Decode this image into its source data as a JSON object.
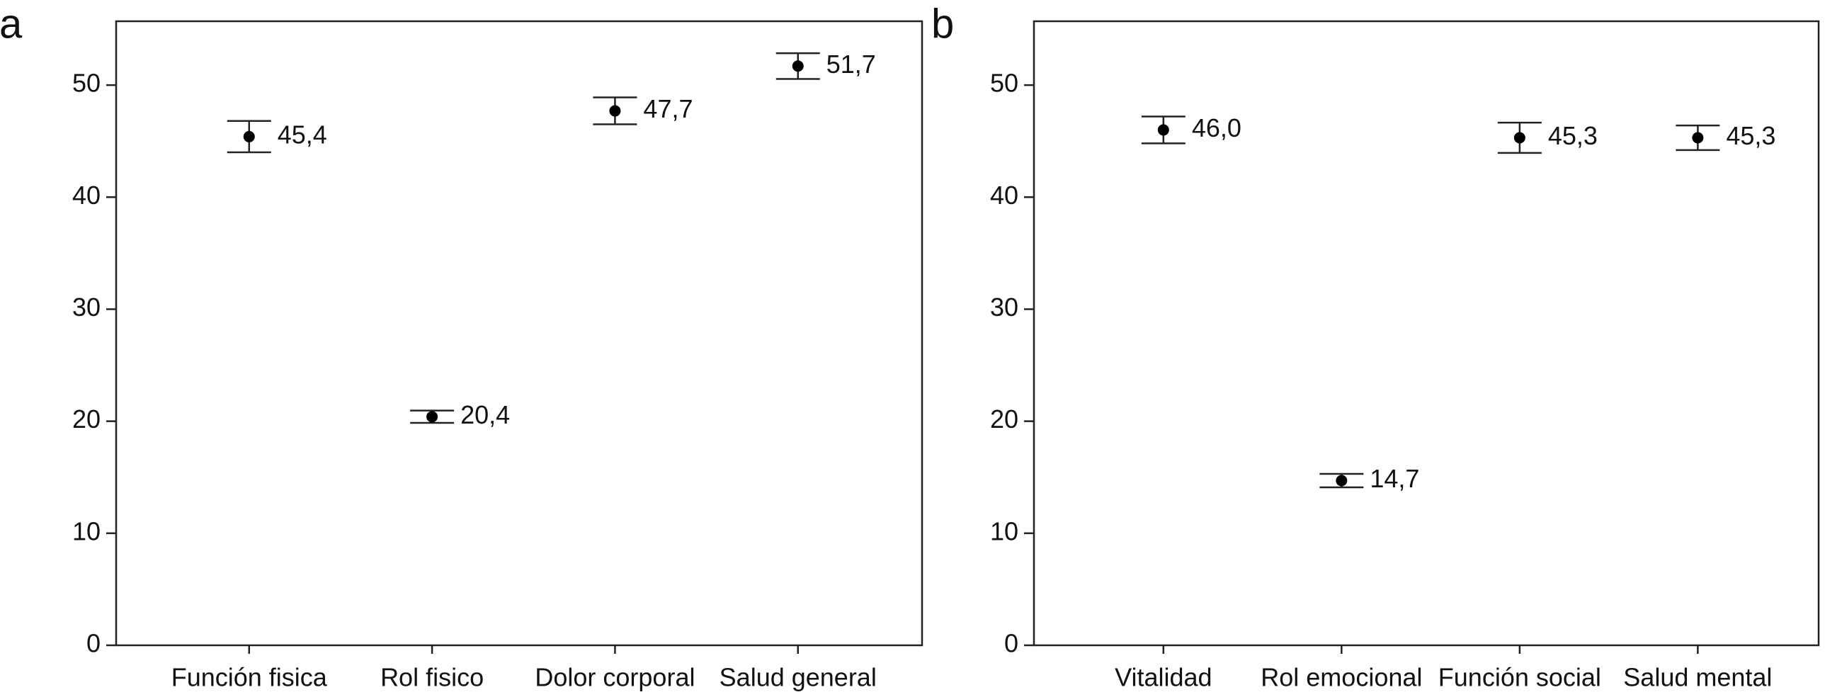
{
  "chart_data": [
    {
      "type": "errorbar",
      "label": "a",
      "categories": [
        "Función fisica",
        "Rol fisico",
        "Dolor corporal",
        "Salud general"
      ],
      "values": [
        45.4,
        20.4,
        47.7,
        51.7
      ],
      "value_labels": [
        "45,4",
        "20,4",
        "47,7",
        "51,7"
      ],
      "errors": [
        1.4,
        0.55,
        1.2,
        1.15
      ],
      "color": "#000000",
      "ylim": [
        0,
        55.7
      ],
      "yticks": [
        0,
        10,
        20,
        30,
        40,
        50
      ]
    },
    {
      "type": "errorbar",
      "label": "b",
      "categories": [
        "Vitalidad",
        "Rol emocional",
        "Función social",
        "Salud mental"
      ],
      "values": [
        46.0,
        14.7,
        45.3,
        45.3
      ],
      "value_labels": [
        "46,0",
        "14,7",
        "45,3",
        "45,3"
      ],
      "errors": [
        1.2,
        0.6,
        1.35,
        1.1
      ],
      "color": "#000000",
      "ylim": [
        0,
        55.7
      ],
      "yticks": [
        0,
        10,
        20,
        30,
        40,
        50
      ]
    }
  ]
}
